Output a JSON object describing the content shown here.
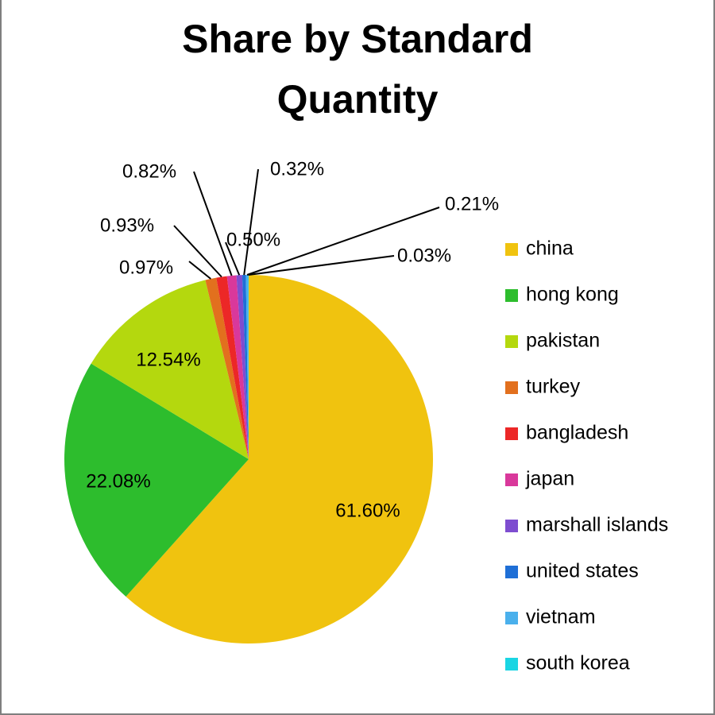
{
  "chart_data": {
    "type": "pie",
    "title_top_fragment": "",
    "title_line1": "Share by Standard",
    "title_line2": "Quantity",
    "categories": [
      "china",
      "hong kong",
      "pakistan",
      "turkey",
      "bangladesh",
      "japan",
      "marshall islands",
      "united states",
      "vietnam",
      "south korea"
    ],
    "values": [
      61.6,
      22.08,
      12.54,
      0.97,
      0.93,
      0.82,
      0.5,
      0.32,
      0.21,
      0.03
    ],
    "value_labels": [
      "61.60%",
      "22.08%",
      "12.54%",
      "0.97%",
      "0.93%",
      "0.82%",
      "0.50%",
      "0.32%",
      "0.21%",
      "0.03%"
    ],
    "colors": [
      "#f0c30f",
      "#2dbd2d",
      "#b4d80e",
      "#e2701e",
      "#ec2727",
      "#d9389b",
      "#7e4dd0",
      "#1f6fd6",
      "#4ab0ec",
      "#1ad5e3"
    ],
    "legend_placement": "right"
  }
}
